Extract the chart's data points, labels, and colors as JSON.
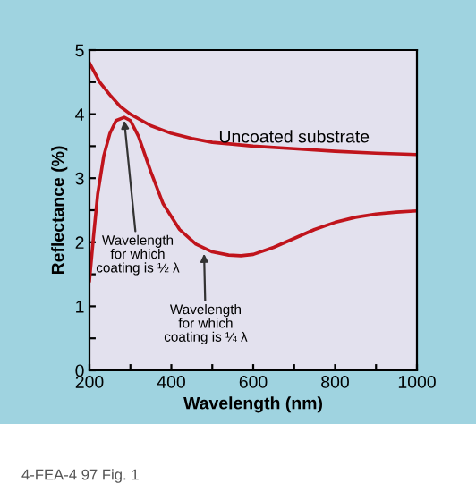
{
  "chart_data": {
    "type": "line",
    "xlabel": "Wavelength (nm)",
    "ylabel": "Reflectance (%)",
    "xlim": [
      200,
      1000
    ],
    "ylim": [
      0,
      5
    ],
    "xticks": [
      200,
      {
        "value": 300,
        "label": null
      },
      400,
      {
        "value": 500,
        "label": null
      },
      600,
      {
        "value": 700,
        "label": null
      },
      800,
      {
        "value": 900,
        "label": null
      },
      1000
    ],
    "yticks": [
      0,
      {
        "value": 0.5,
        "label": null
      },
      1,
      {
        "value": 1.5,
        "label": null
      },
      2,
      {
        "value": 2.5,
        "label": null
      },
      3,
      {
        "value": 3.5,
        "label": null
      },
      4,
      {
        "value": 4.5,
        "label": null
      },
      5
    ],
    "grid": false,
    "legend": false,
    "marker": "none",
    "line_style": "solid",
    "series": [
      {
        "name": "Uncoated substrate",
        "color": "#c0141c",
        "x": [
          200,
          225,
          250,
          275,
          300,
          350,
          400,
          450,
          500,
          600,
          700,
          800,
          900,
          1000
        ],
        "values": [
          4.8,
          4.5,
          4.3,
          4.12,
          4.0,
          3.82,
          3.7,
          3.62,
          3.56,
          3.5,
          3.46,
          3.42,
          3.39,
          3.37
        ]
      },
      {
        "color": "#c0141c",
        "x": [
          200,
          210,
          220,
          235,
          250,
          265,
          285,
          300,
          320,
          350,
          380,
          420,
          460,
          500,
          540,
          570,
          600,
          650,
          700,
          750,
          800,
          850,
          900,
          950,
          1000
        ],
        "values": [
          1.4,
          2.1,
          2.75,
          3.35,
          3.7,
          3.9,
          3.95,
          3.9,
          3.65,
          3.1,
          2.6,
          2.2,
          1.97,
          1.85,
          1.8,
          1.79,
          1.81,
          1.92,
          2.06,
          2.2,
          2.31,
          2.39,
          2.44,
          2.47,
          2.49
        ]
      }
    ],
    "annotations": [
      {
        "text": "Wavelength\nfor which\ncoating is ½ λ",
        "x": 285,
        "y": 3.9
      },
      {
        "text": "Wavelength\nfor which\ncoating is ¼ λ",
        "x": 480,
        "y": 1.82
      },
      "4-FEA-4 97 Fig. 1"
    ]
  }
}
